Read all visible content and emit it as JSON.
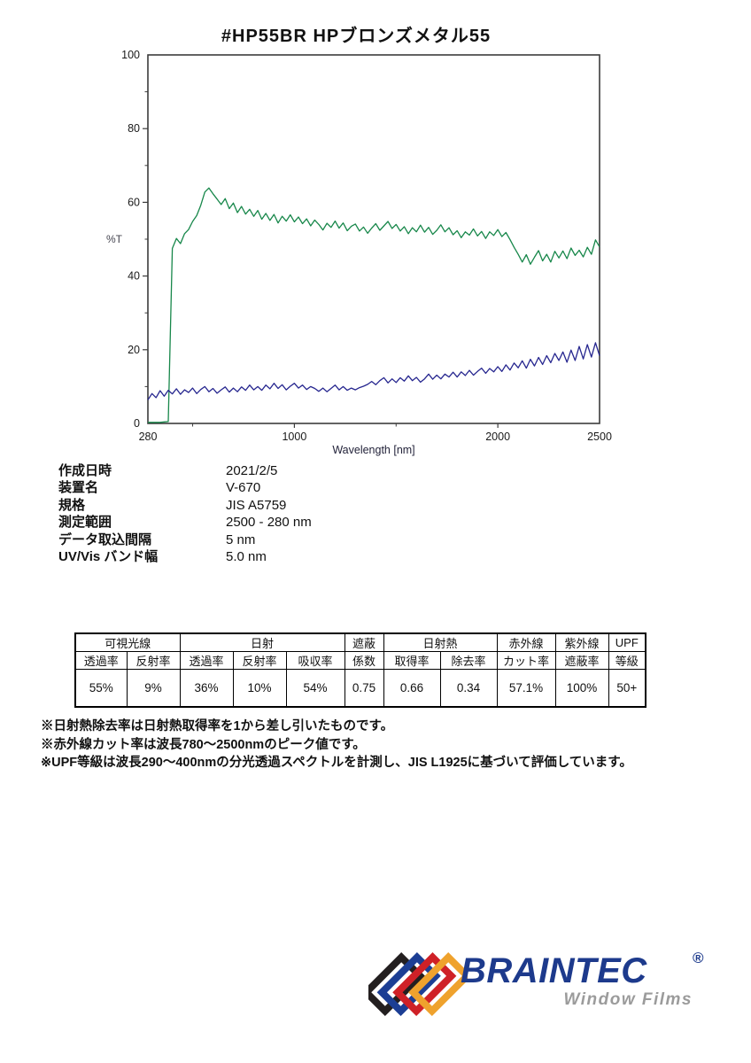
{
  "page": {
    "title": "#HP55BR  HPブロンズメタル55"
  },
  "chart_data": {
    "type": "line",
    "title": "#HP55BR HPブロンズメタル55",
    "xlabel": "Wavelength [nm]",
    "ylabel": "%T",
    "xlim": [
      280,
      2500
    ],
    "ylim": [
      0,
      100
    ],
    "xticks_labeled": [
      280,
      1000,
      2000,
      2500
    ],
    "xticks_minor": [
      500,
      1500
    ],
    "yticks_labeled": [
      0,
      20,
      40,
      60,
      80,
      100
    ],
    "yticks_minor": [
      10,
      30,
      50,
      70,
      90
    ],
    "grid": false,
    "legend_position": "none",
    "axis_color": "#3c3c3c",
    "x_start": 280,
    "x_step": 20,
    "series": [
      {
        "name": "transmittance-spectrum",
        "color": "#17874a",
        "values": [
          0.3,
          0.3,
          0.3,
          0.3,
          0.4,
          0.5,
          47.5,
          50.2,
          48.8,
          51.5,
          52.6,
          54.8,
          56.4,
          59.2,
          62.8,
          63.9,
          62.3,
          60.9,
          59.4,
          61.0,
          58.3,
          59.8,
          57.2,
          58.9,
          56.8,
          58.1,
          56.2,
          57.8,
          55.4,
          57.0,
          55.1,
          56.7,
          54.4,
          56.2,
          54.9,
          56.6,
          54.7,
          56.0,
          54.2,
          55.5,
          53.6,
          55.2,
          54.0,
          52.5,
          54.3,
          53.2,
          54.9,
          53.0,
          54.4,
          52.3,
          53.5,
          54.1,
          52.2,
          53.3,
          51.6,
          53.0,
          54.2,
          52.4,
          53.6,
          54.8,
          52.9,
          54.0,
          52.2,
          53.4,
          51.5,
          53.1,
          52.0,
          53.8,
          51.9,
          53.2,
          51.3,
          52.4,
          53.9,
          52.0,
          53.1,
          51.2,
          52.3,
          50.4,
          52.0,
          51.1,
          52.8,
          50.9,
          52.1,
          50.2,
          52.0,
          51.0,
          52.6,
          50.7,
          51.8,
          49.9,
          47.8,
          45.9,
          43.8,
          45.8,
          43.2,
          45.1,
          46.9,
          44.1,
          45.9,
          43.8,
          46.7,
          44.9,
          46.8,
          44.7,
          47.6,
          45.6,
          47.0,
          45.2,
          47.8,
          45.9,
          49.8,
          47.9
        ]
      },
      {
        "name": "reflectance-spectrum",
        "color": "#26268f",
        "values": [
          6.4,
          8.1,
          7.0,
          8.9,
          7.4,
          9.0,
          8.0,
          9.4,
          7.9,
          9.1,
          8.4,
          9.6,
          8.1,
          9.2,
          10.0,
          8.6,
          9.5,
          8.2,
          9.1,
          9.9,
          8.5,
          9.6,
          8.6,
          9.9,
          9.0,
          10.4,
          9.1,
          10.0,
          9.0,
          10.4,
          9.4,
          10.9,
          9.5,
          10.5,
          9.1,
          10.1,
          10.9,
          9.6,
          10.4,
          9.2,
          10.0,
          9.5,
          8.7,
          9.6,
          8.6,
          9.5,
          10.4,
          9.1,
          10.0,
          9.0,
          9.6,
          9.1,
          9.7,
          10.1,
          10.6,
          11.4,
          10.5,
          11.6,
          12.4,
          11.0,
          12.1,
          11.1,
          12.4,
          11.5,
          12.9,
          11.6,
          12.5,
          11.2,
          12.1,
          13.4,
          12.0,
          13.1,
          12.1,
          13.4,
          12.6,
          13.9,
          12.6,
          14.0,
          13.0,
          14.4,
          13.1,
          14.1,
          15.0,
          13.6,
          14.9,
          14.0,
          15.4,
          14.1,
          15.9,
          14.5,
          16.4,
          15.1,
          17.0,
          15.0,
          17.4,
          15.6,
          17.9,
          16.0,
          18.4,
          16.5,
          19.0,
          17.1,
          19.4,
          16.6,
          19.9,
          17.1,
          20.9,
          17.5,
          21.4,
          18.0,
          21.9,
          18.4
        ]
      }
    ]
  },
  "metadata": {
    "rows": [
      {
        "label": "作成日時",
        "value": "2021/2/5"
      },
      {
        "label": "装置名",
        "value": "V-670"
      },
      {
        "label": "規格",
        "value": "JIS A5759"
      },
      {
        "label": "測定範囲",
        "value": "2500 - 280 nm"
      },
      {
        "label": "データ取込間隔",
        "value": "5 nm"
      },
      {
        "label": "UV/Vis バンド幅",
        "value": "5.0 nm"
      }
    ]
  },
  "table": {
    "groups": [
      {
        "label": "可視光線",
        "colspan": "2"
      },
      {
        "label": "日射",
        "colspan": "3"
      },
      {
        "label": "遮蔽",
        "colspan": "1"
      },
      {
        "label": "日射熱",
        "colspan": "2"
      },
      {
        "label": "赤外線",
        "colspan": "1"
      },
      {
        "label": "紫外線",
        "colspan": "1"
      },
      {
        "label": "UPF",
        "colspan": "1"
      }
    ],
    "subheaders": [
      "透過率",
      "反射率",
      "透過率",
      "反射率",
      "吸収率",
      "係数",
      "取得率",
      "除去率",
      "カット率",
      "遮蔽率",
      "等級"
    ],
    "values": [
      "55%",
      "9%",
      "36%",
      "10%",
      "54%",
      "0.75",
      "0.66",
      "0.34",
      "57.1%",
      "100%",
      "50+"
    ]
  },
  "notes": [
    "※日射熱除去率は日射熱取得率を1から差し引いたものです。",
    "※赤外線カット率は波長780〜2500nmのピーク値です。",
    "※UPF等級は波長290〜400nmの分光透過スペクトルを計測し、JIS L1925に基づいて評価しています。"
  ],
  "logo": {
    "brand": "BRAINTEC",
    "registered": "®",
    "tagline": "Window Films",
    "brand_color": "#1d3a8c",
    "tagline_color": "#9b9b9b",
    "diamond_colors": [
      "#231f20",
      "#1c3e94",
      "#cf2127",
      "#efa22d"
    ]
  }
}
